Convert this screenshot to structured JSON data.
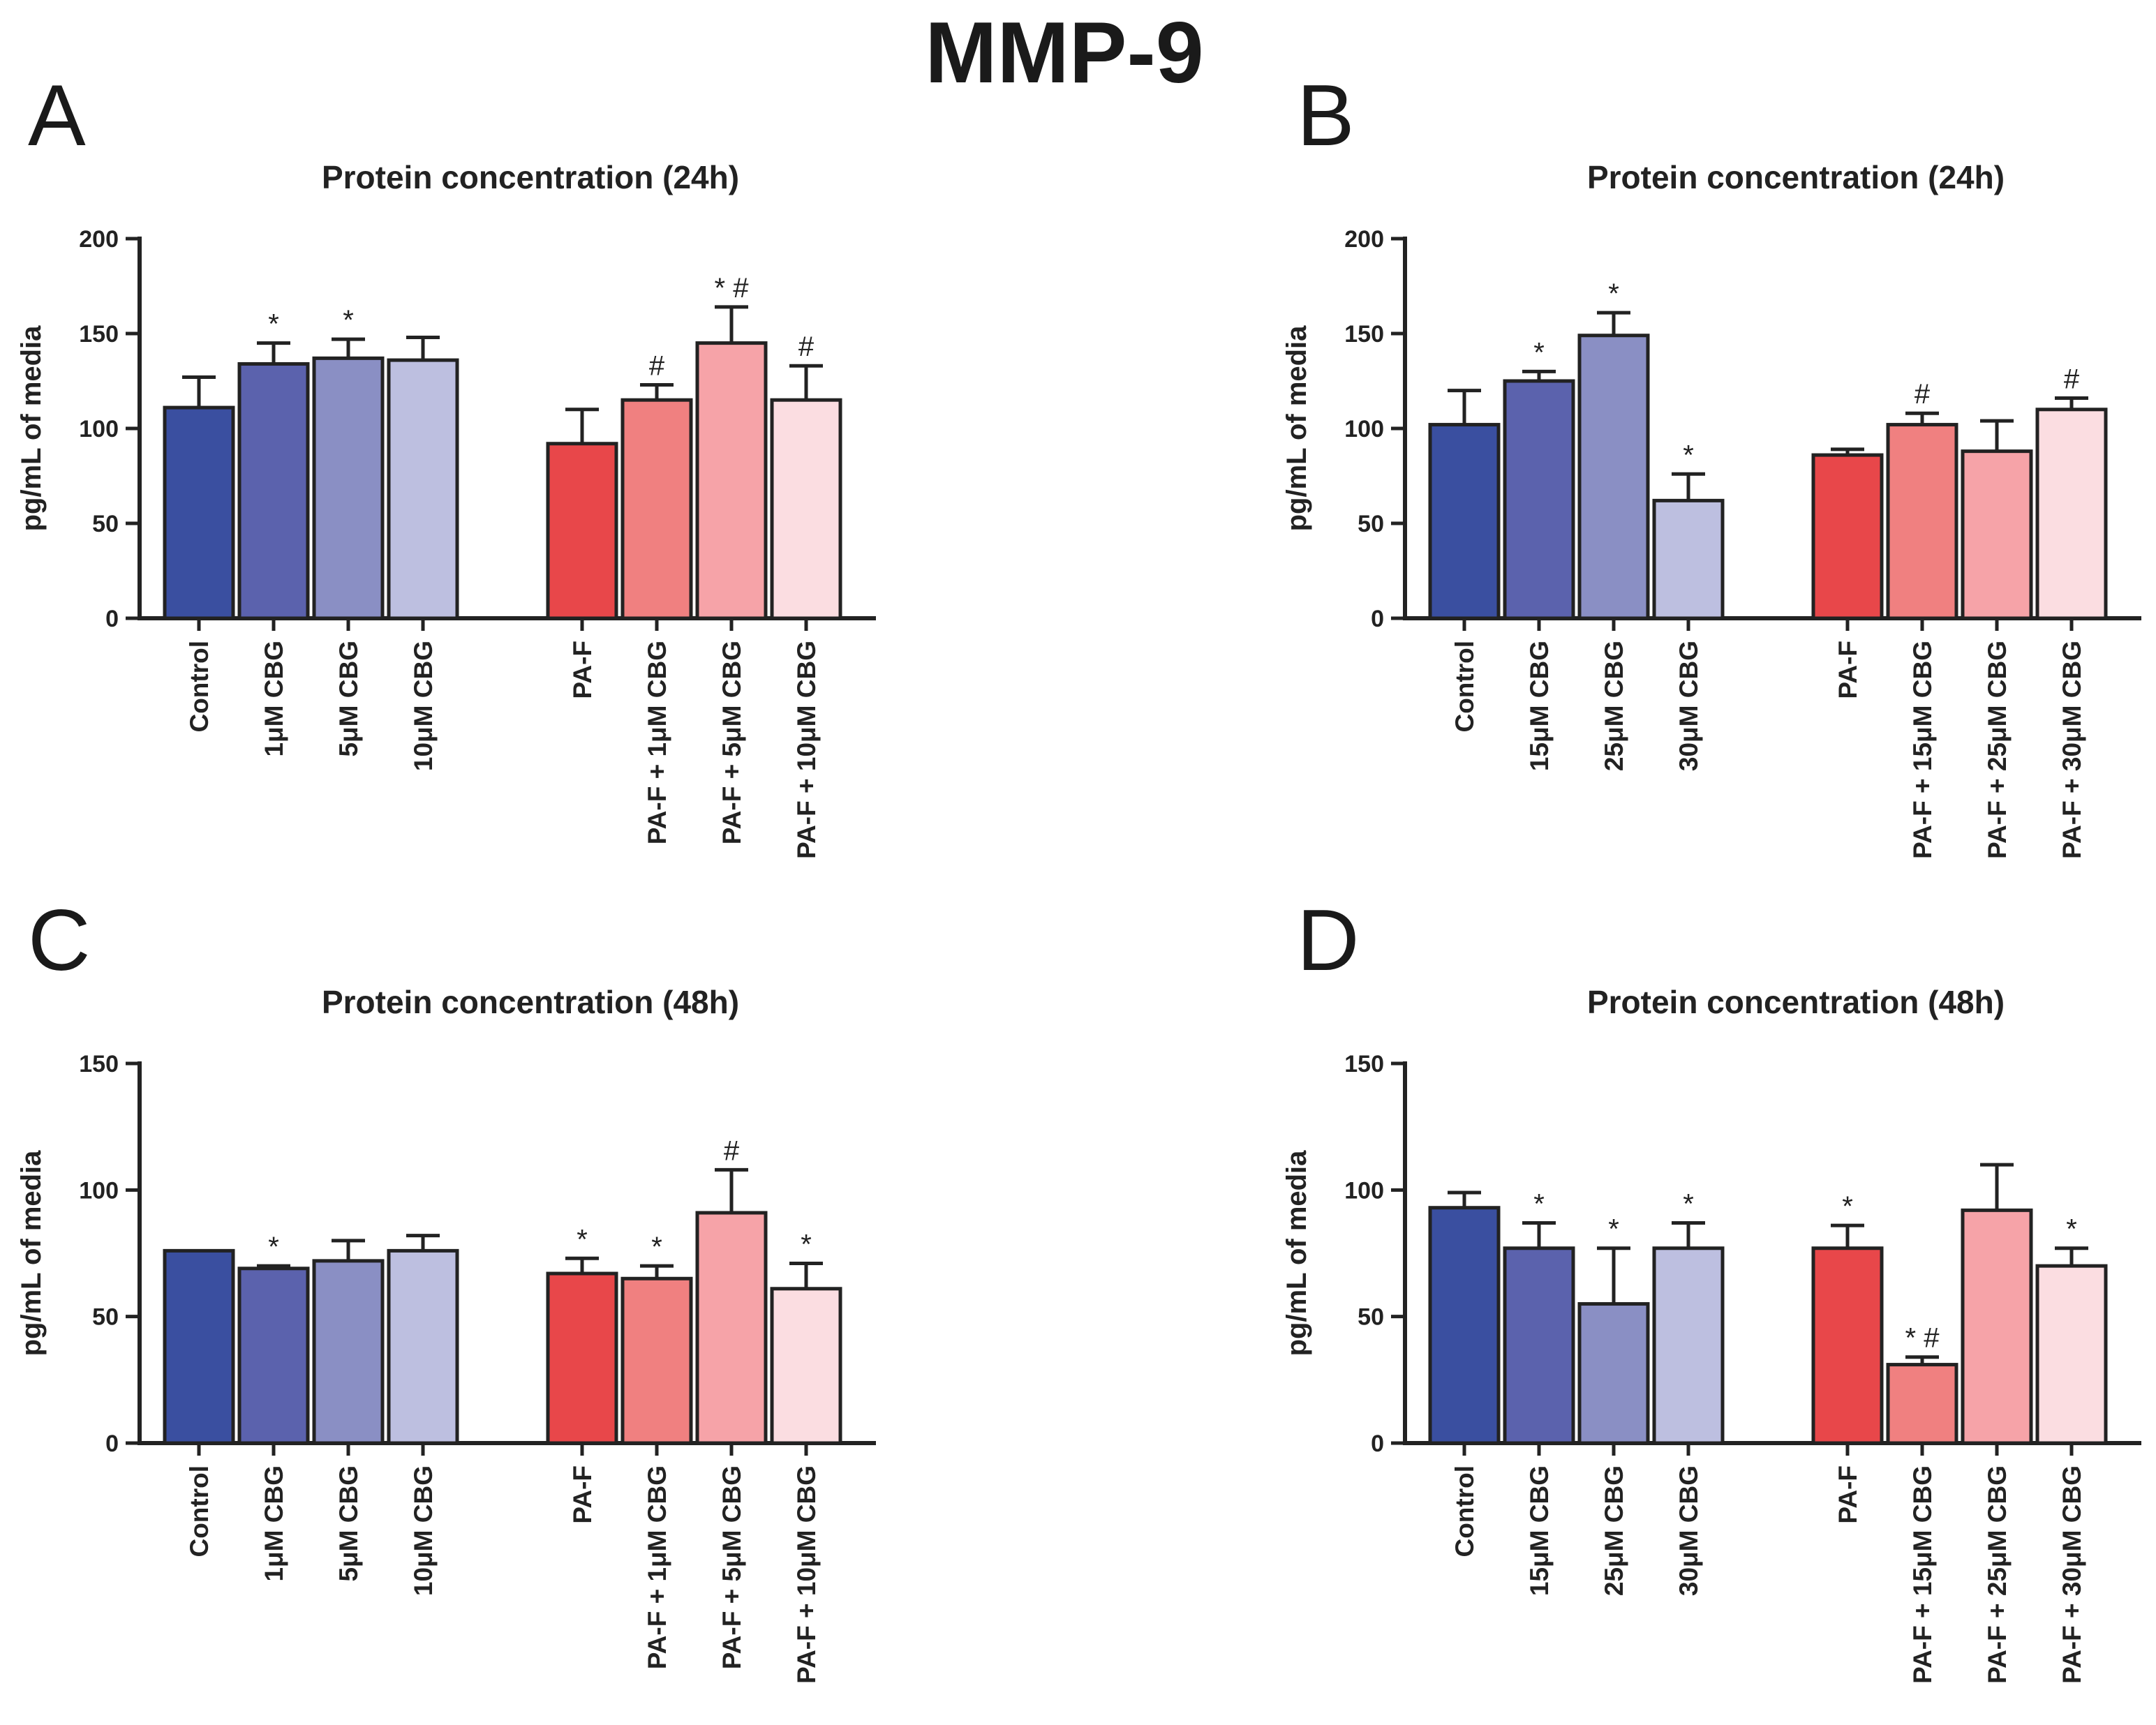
{
  "figure": {
    "title": "MMP-9"
  },
  "colors": {
    "blue": [
      "#3a4fa0",
      "#5b62ad",
      "#8a8fc4",
      "#bdbfe0"
    ],
    "red": [
      "#e8474a",
      "#f08080",
      "#f6a3a8",
      "#fbdde1"
    ]
  },
  "chart_data": [
    {
      "panel": "A",
      "type": "bar",
      "title": "Protein concentration (24h)",
      "ylabel": "pg/mL of media",
      "ylim": [
        0,
        200
      ],
      "yticks": [
        "0",
        "50",
        "100",
        "150",
        "200"
      ],
      "groups": [
        {
          "palette": "blue",
          "categories": [
            "Control",
            "1μM CBG",
            "5μM CBG",
            "10μM CBG"
          ],
          "values": [
            111,
            134,
            137,
            136
          ],
          "errors": [
            16,
            11,
            10,
            12
          ],
          "annotations": [
            "",
            "*",
            "*",
            ""
          ]
        },
        {
          "palette": "red",
          "categories": [
            "PA-F",
            "PA-F + 1μM CBG",
            "PA-F + 5μM CBG",
            "PA-F + 10μM CBG"
          ],
          "values": [
            92,
            115,
            145,
            115
          ],
          "errors": [
            18,
            8,
            19,
            18
          ],
          "annotations": [
            "",
            "#",
            "* #",
            "#"
          ]
        }
      ]
    },
    {
      "panel": "B",
      "type": "bar",
      "title": "Protein concentration (24h)",
      "ylabel": "pg/mL of media",
      "ylim": [
        0,
        200
      ],
      "yticks": [
        "0",
        "50",
        "100",
        "150",
        "200"
      ],
      "groups": [
        {
          "palette": "blue",
          "categories": [
            "Control",
            "15μM CBG",
            "25μM CBG",
            "30μM CBG"
          ],
          "values": [
            102,
            125,
            149,
            62
          ],
          "errors": [
            18,
            5,
            12,
            14
          ],
          "annotations": [
            "",
            "*",
            "*",
            "*"
          ]
        },
        {
          "palette": "red",
          "categories": [
            "PA-F",
            "PA-F + 15μM CBG",
            "PA-F + 25μM CBG",
            "PA-F + 30μM CBG"
          ],
          "values": [
            86,
            102,
            88,
            110
          ],
          "errors": [
            3,
            6,
            16,
            6
          ],
          "annotations": [
            "",
            "#",
            "",
            "#"
          ]
        }
      ]
    },
    {
      "panel": "C",
      "type": "bar",
      "title": "Protein concentration (48h)",
      "ylabel": "pg/mL of media",
      "ylim": [
        0,
        150
      ],
      "yticks": [
        "0",
        "50",
        "100",
        "150"
      ],
      "groups": [
        {
          "palette": "blue",
          "categories": [
            "Control",
            "1μM CBG",
            "5μM CBG",
            "10μM CBG"
          ],
          "values": [
            76,
            69,
            72,
            76
          ],
          "errors": [
            0,
            1,
            8,
            6
          ],
          "annotations": [
            "",
            "*",
            "",
            ""
          ]
        },
        {
          "palette": "red",
          "categories": [
            "PA-F",
            "PA-F + 1μM CBG",
            "PA-F + 5μM CBG",
            "PA-F + 10μM CBG"
          ],
          "values": [
            67,
            65,
            91,
            61
          ],
          "errors": [
            6,
            5,
            17,
            10
          ],
          "annotations": [
            "*",
            "*",
            "#",
            "*"
          ]
        }
      ]
    },
    {
      "panel": "D",
      "type": "bar",
      "title": "Protein concentration (48h)",
      "ylabel": "pg/mL of media",
      "ylim": [
        0,
        150
      ],
      "yticks": [
        "0",
        "50",
        "100",
        "150"
      ],
      "groups": [
        {
          "palette": "blue",
          "categories": [
            "Control",
            "15μM CBG",
            "25μM CBG",
            "30μM CBG"
          ],
          "values": [
            93,
            77,
            55,
            77
          ],
          "errors": [
            6,
            10,
            22,
            10
          ],
          "annotations": [
            "",
            "*",
            "*",
            "*"
          ]
        },
        {
          "palette": "red",
          "categories": [
            "PA-F",
            "PA-F + 15μM CBG",
            "PA-F + 25μM CBG",
            "PA-F + 30μM CBG"
          ],
          "values": [
            77,
            31,
            92,
            70
          ],
          "errors": [
            9,
            3,
            18,
            7
          ],
          "annotations": [
            "*",
            "* #",
            "",
            "*"
          ]
        }
      ]
    }
  ]
}
